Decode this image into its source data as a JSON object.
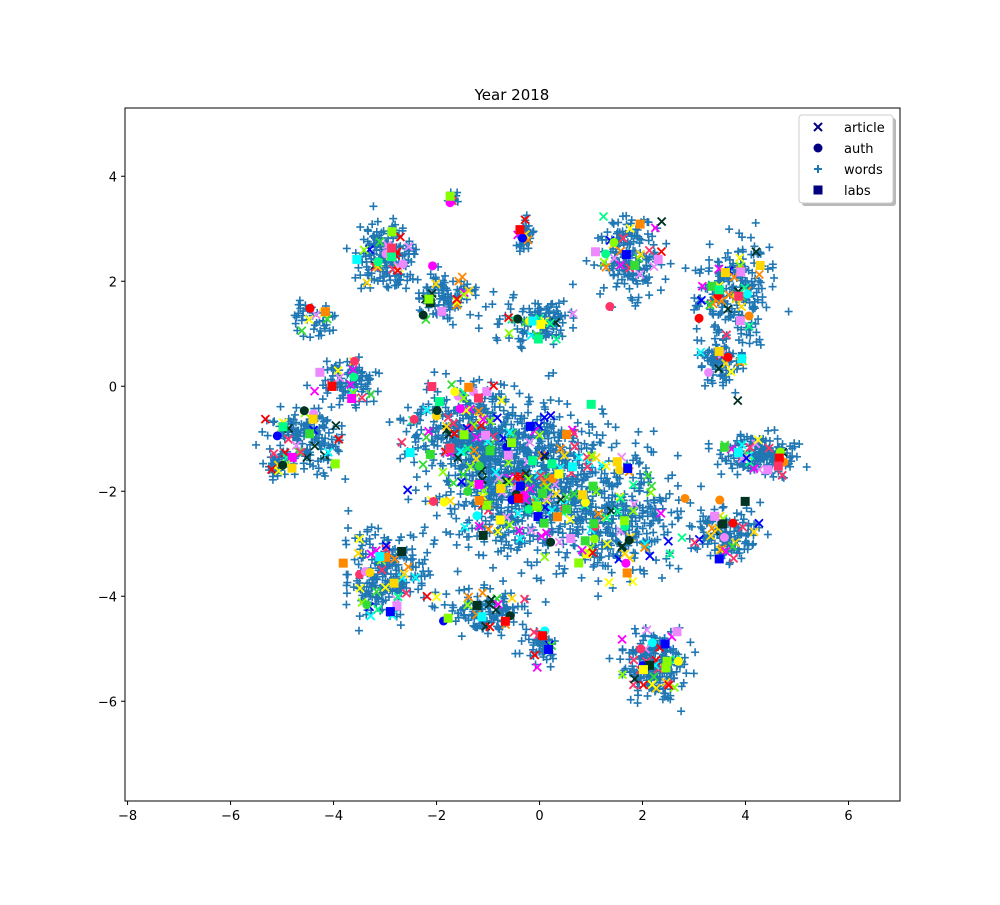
{
  "chart_data": {
    "type": "scatter",
    "title": "Year 2018",
    "xlabel": "",
    "ylabel": "",
    "xlim": [
      -8.05,
      7.0
    ],
    "ylim": [
      -7.9,
      5.3
    ],
    "xticks": [
      -8,
      -6,
      -4,
      -2,
      0,
      2,
      4,
      6
    ],
    "yticks": [
      4,
      2,
      0,
      -2,
      -4,
      -6
    ],
    "xtick_labels": [
      "−8",
      "−6",
      "−4",
      "−2",
      "0",
      "2",
      "4",
      "6"
    ],
    "ytick_labels": [
      "4",
      "2",
      "0",
      "−2",
      "−4",
      "−6"
    ],
    "grid": false,
    "legend": {
      "placement": "top-right",
      "entries": [
        {
          "label": "article",
          "marker": "x",
          "color": "#000080"
        },
        {
          "label": "auth",
          "marker": "circle",
          "color": "#000080"
        },
        {
          "label": "words",
          "marker": "plus",
          "color": "#1f77b4"
        },
        {
          "label": "labs",
          "marker": "square",
          "color": "#000080"
        }
      ]
    },
    "words_color": "#1f77b4",
    "label_palette": [
      "#ff0000",
      "#ff00ff",
      "#00ffff",
      "#ffff00",
      "#33dd33",
      "#ff8800",
      "#0000ff",
      "#003322",
      "#ffd700",
      "#ee88ff",
      "#88ff00",
      "#00ff88",
      "#ff3366"
    ],
    "clusters": [
      {
        "cx": -0.3,
        "cy": -1.8,
        "sx": 1.3,
        "sy": 1.1,
        "n": 900
      },
      {
        "cx": -1.5,
        "cy": -0.8,
        "sx": 0.9,
        "sy": 0.7,
        "n": 300
      },
      {
        "cx": 1.5,
        "cy": -2.5,
        "sx": 1.0,
        "sy": 1.0,
        "n": 320
      },
      {
        "cx": -3.0,
        "cy": -3.6,
        "sx": 0.7,
        "sy": 0.7,
        "n": 220
      },
      {
        "cx": 2.2,
        "cy": -5.3,
        "sx": 0.5,
        "sy": 0.6,
        "n": 200
      },
      {
        "cx": 3.6,
        "cy": -2.8,
        "sx": 0.5,
        "sy": 0.4,
        "n": 140
      },
      {
        "cx": 4.2,
        "cy": -1.3,
        "sx": 0.6,
        "sy": 0.3,
        "n": 150
      },
      {
        "cx": 3.8,
        "cy": 1.8,
        "sx": 0.6,
        "sy": 0.8,
        "n": 220
      },
      {
        "cx": 1.8,
        "cy": 2.5,
        "sx": 0.5,
        "sy": 0.7,
        "n": 160
      },
      {
        "cx": -3.0,
        "cy": 2.5,
        "sx": 0.5,
        "sy": 0.5,
        "n": 160
      },
      {
        "cx": -1.8,
        "cy": 1.7,
        "sx": 0.5,
        "sy": 0.4,
        "n": 100
      },
      {
        "cx": -4.5,
        "cy": -1.0,
        "sx": 0.6,
        "sy": 0.5,
        "n": 150
      },
      {
        "cx": -3.7,
        "cy": 0.1,
        "sx": 0.5,
        "sy": 0.4,
        "n": 90
      },
      {
        "cx": 0.0,
        "cy": 1.2,
        "sx": 0.6,
        "sy": 0.4,
        "n": 110
      },
      {
        "cx": -0.3,
        "cy": 2.9,
        "sx": 0.15,
        "sy": 0.3,
        "n": 30
      },
      {
        "cx": -1.7,
        "cy": 3.6,
        "sx": 0.1,
        "sy": 0.1,
        "n": 12
      },
      {
        "cx": -4.4,
        "cy": 1.3,
        "sx": 0.3,
        "sy": 0.3,
        "n": 40
      },
      {
        "cx": -1.0,
        "cy": -4.3,
        "sx": 0.6,
        "sy": 0.4,
        "n": 120
      },
      {
        "cx": 0.0,
        "cy": -5.0,
        "sx": 0.3,
        "sy": 0.3,
        "n": 50
      },
      {
        "cx": -5.1,
        "cy": -1.5,
        "sx": 0.25,
        "sy": 0.2,
        "n": 40
      },
      {
        "cx": 3.5,
        "cy": 0.5,
        "sx": 0.4,
        "sy": 0.4,
        "n": 80
      }
    ]
  }
}
